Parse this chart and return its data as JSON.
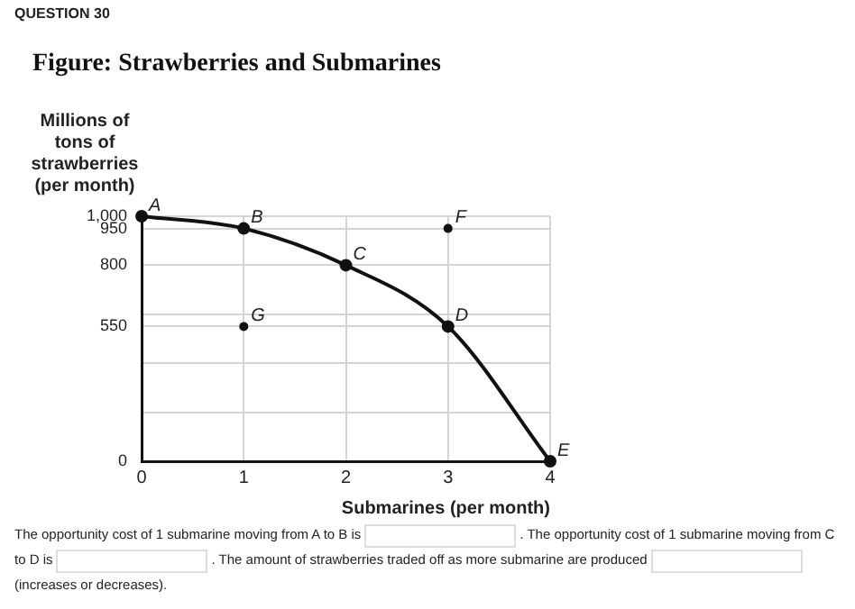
{
  "chart_data": {
    "type": "line",
    "title": "Figure: Strawberries and Submarines",
    "xlabel": "Submarines (per month)",
    "ylabel": "Millions of tons of strawberries (per month)",
    "series": [
      {
        "color": "#111111",
        "x": [
          0,
          1,
          2,
          3,
          4
        ],
        "values": [
          1000,
          950,
          800,
          550,
          0
        ]
      },
      {
        "type": "scatter",
        "color": "#111111",
        "x": [
          3,
          1
        ],
        "values": [
          950,
          550
        ]
      }
    ],
    "xlim": [
      0,
      4
    ],
    "xticks": [
      0,
      1,
      2,
      3,
      4
    ],
    "ylim": [
      0,
      1000
    ],
    "yticks": [
      0,
      {
        "value": 200,
        "label": null
      },
      {
        "value": 400,
        "label": null
      },
      550,
      {
        "value": 600,
        "label": null
      },
      800,
      950,
      {
        "value": 1000,
        "label": "1,000"
      }
    ],
    "grid": true,
    "legend": false,
    "marker": "circle",
    "line_style": "solid",
    "annotations": [
      "QUESTION 30",
      {
        "text": "A",
        "x": 0,
        "y": 1000
      },
      {
        "text": "B",
        "x": 1,
        "y": 950
      },
      {
        "text": "C",
        "x": 2,
        "y": 800
      },
      {
        "text": "D",
        "x": 3,
        "y": 550
      },
      {
        "text": "E",
        "x": 4,
        "y": 0
      },
      {
        "text": "F",
        "x": 3,
        "y": 950
      },
      {
        "text": "G",
        "x": 1,
        "y": 550
      },
      "The opportunity cost of 1 submarine moving from A to B is",
      ". The opportunity cost of 1 submarine moving from C to D is",
      ". The amount of strawberries traded off as more submarine are produced",
      "(increases or decreases)."
    ]
  }
}
